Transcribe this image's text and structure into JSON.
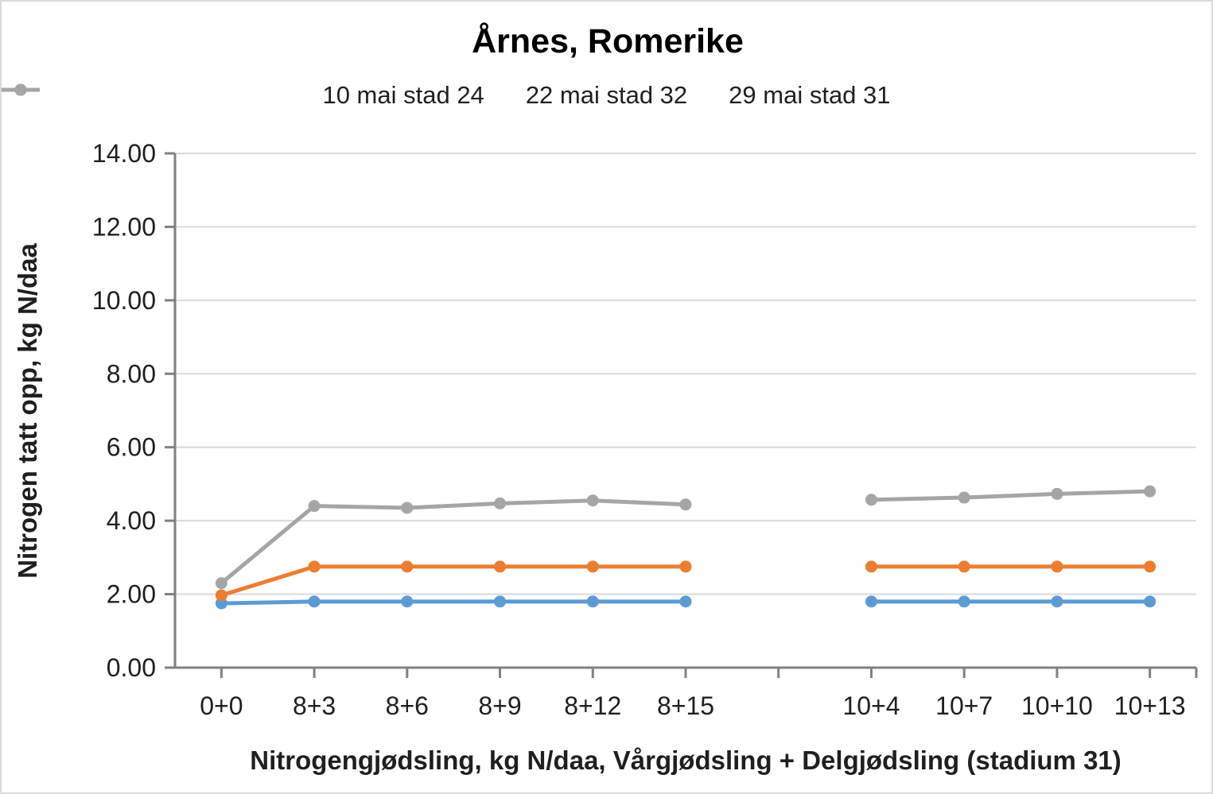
{
  "chart_data": {
    "type": "line",
    "title": "Årnes, Romerike",
    "xlabel": "Nitrogengjødsling, kg N/daa, Vårgjødsling + Delgjødsling (stadium 31)",
    "ylabel": "Nitrogen tatt opp, kg N/daa",
    "categories": [
      "0+0",
      "8+3",
      "8+6",
      "8+9",
      "8+12",
      "8+15",
      "",
      "10+4",
      "10+7",
      "10+10",
      "10+13"
    ],
    "ylim": [
      0,
      14
    ],
    "ytick_step": 2,
    "ytick_labels": [
      "0.00",
      "2.00",
      "4.00",
      "6.00",
      "8.00",
      "10.00",
      "12.00",
      "14.00"
    ],
    "grid": true,
    "legend_position": "top",
    "series": [
      {
        "name": "10 mai stad 24",
        "color": "#5B9BD5",
        "values": [
          1.75,
          1.8,
          1.8,
          1.8,
          1.8,
          1.8,
          null,
          1.8,
          1.8,
          1.8,
          1.8
        ]
      },
      {
        "name": "22 mai stad 32",
        "color": "#ED7D31",
        "values": [
          1.97,
          2.75,
          2.75,
          2.75,
          2.75,
          2.75,
          null,
          2.75,
          2.75,
          2.75,
          2.75
        ]
      },
      {
        "name": "29 mai stad 31",
        "color": "#A5A5A5",
        "values": [
          2.3,
          4.4,
          4.35,
          4.47,
          4.55,
          4.44,
          null,
          4.57,
          4.63,
          4.73,
          4.8
        ]
      }
    ],
    "colors": {
      "axis": "#808080",
      "gridline": "#D9D9D9",
      "label_text": "#1f1f1f",
      "title_text": "#000000"
    }
  }
}
